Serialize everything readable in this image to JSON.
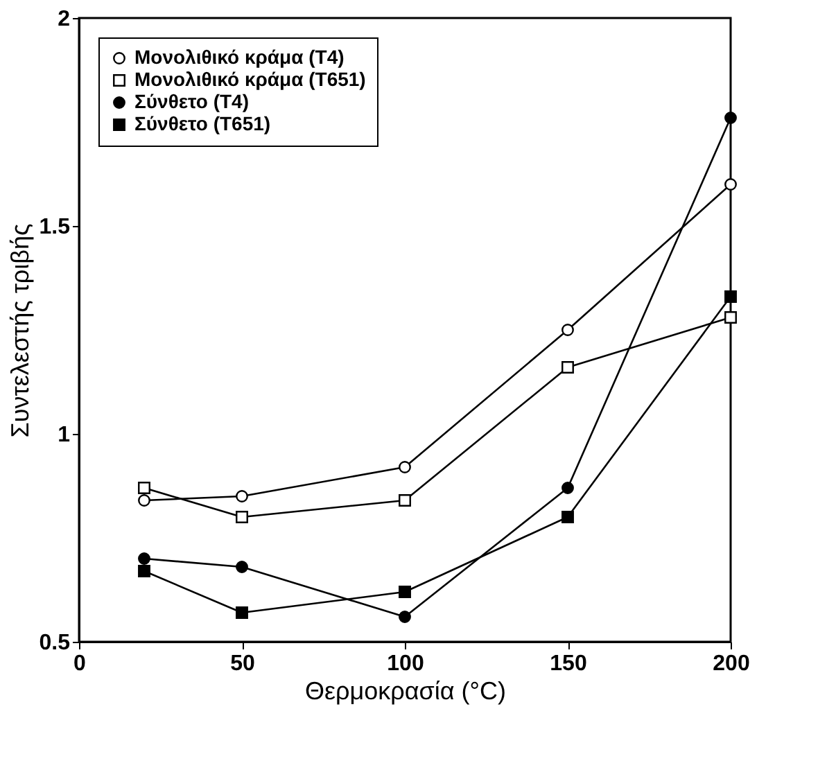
{
  "chart_data": {
    "type": "line",
    "xlabel": "Θερμοκρασία (°C)",
    "ylabel": "Συντελεστής τριβής",
    "x": [
      20,
      50,
      100,
      150,
      200
    ],
    "series": [
      {
        "name": "Μονολιθικό κράμα (T4)",
        "color": "#ffffff",
        "marker": "circle",
        "values": [
          0.84,
          0.85,
          0.92,
          1.25,
          1.6
        ]
      },
      {
        "name": "Μονολιθικό κράμα (T651)",
        "color": "#ffffff",
        "marker": "square",
        "values": [
          0.87,
          0.8,
          0.84,
          1.16,
          1.28
        ]
      },
      {
        "name": "Σύνθετο (T4)",
        "color": "#000000",
        "marker": "circle",
        "values": [
          0.7,
          0.68,
          0.56,
          0.87,
          1.76
        ]
      },
      {
        "name": "Σύνθετο (T651)",
        "color": "#000000",
        "marker": "square",
        "values": [
          0.67,
          0.57,
          0.62,
          0.8,
          1.33
        ]
      }
    ],
    "xlim": [
      0,
      200
    ],
    "ylim": [
      0.5,
      2
    ],
    "xticks": [
      0,
      50,
      100,
      150,
      200
    ],
    "yticks": [
      0.5,
      1,
      1.5,
      2
    ],
    "legend": "top left",
    "grid": false,
    "line_style": "solid"
  }
}
